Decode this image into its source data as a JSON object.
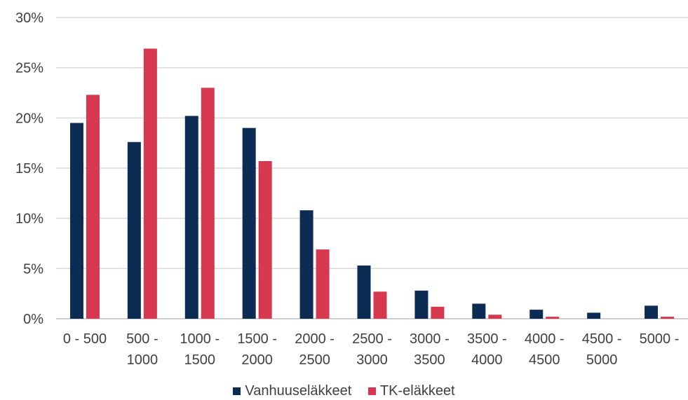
{
  "chart_data": {
    "type": "bar",
    "categories": [
      "0 - 500",
      "500 - 1000",
      "1000 - 1500",
      "1500 - 2000",
      "2000 - 2500",
      "2500 - 3000",
      "3000 - 3500",
      "3500 - 4000",
      "4000 - 4500",
      "4500 - 5000",
      "5000 -"
    ],
    "series": [
      {
        "name": "Vanhuuseläkkeet",
        "color": "#0d2c54",
        "values": [
          19.5,
          17.6,
          20.2,
          19.0,
          10.8,
          5.3,
          2.8,
          1.5,
          0.9,
          0.6,
          1.3
        ]
      },
      {
        "name": "TK-eläkkeet",
        "color": "#d63850",
        "values": [
          22.3,
          26.9,
          23.0,
          15.7,
          6.9,
          2.7,
          1.2,
          0.4,
          0.2,
          0.0,
          0.2
        ]
      }
    ],
    "ylim": [
      0,
      30
    ],
    "yticks": [
      0,
      5,
      10,
      15,
      20,
      25,
      30
    ],
    "ytick_labels": [
      "0%",
      "5%",
      "10%",
      "15%",
      "20%",
      "25%",
      "30%"
    ],
    "grid": true,
    "legend_position": "bottom"
  }
}
